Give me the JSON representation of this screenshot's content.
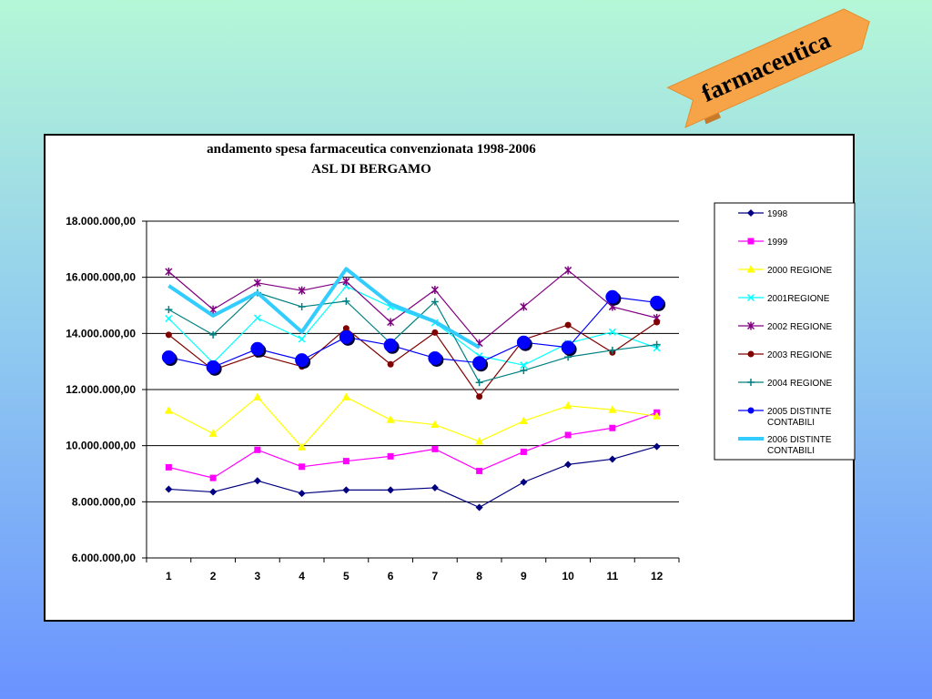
{
  "banner": {
    "text": "farmaceutica",
    "color": "#f7a347"
  },
  "chart_data": {
    "type": "line",
    "title": "andamento spesa farmaceutica convenzionata 1998-2006",
    "subtitle": "ASL DI BERGAMO",
    "categories": [
      "1",
      "2",
      "3",
      "4",
      "5",
      "6",
      "7",
      "8",
      "9",
      "10",
      "11",
      "12"
    ],
    "ylim": [
      6000000,
      18000000
    ],
    "yticks": [
      "6.000.000,00",
      "8.000.000,00",
      "10.000.000,00",
      "12.000.000,00",
      "14.000.000,00",
      "16.000.000,00",
      "18.000.000,00"
    ],
    "grid": true,
    "legend_position": "right",
    "series": [
      {
        "name": "1998",
        "color": "#000080",
        "marker": "diamond",
        "values": [
          8450000,
          8350000,
          8750000,
          8300000,
          8420000,
          8420000,
          8500000,
          7800000,
          8700000,
          9330000,
          9520000,
          9970000
        ]
      },
      {
        "name": "1999",
        "color": "#ff00ff",
        "marker": "square",
        "values": [
          9230000,
          8850000,
          9850000,
          9250000,
          9450000,
          9620000,
          9880000,
          9100000,
          9780000,
          10380000,
          10630000,
          11180000
        ]
      },
      {
        "name": "2000 REGIONE",
        "color": "#ffff00",
        "marker": "triangle",
        "values": [
          11250000,
          10430000,
          11730000,
          9950000,
          11730000,
          10920000,
          10750000,
          10150000,
          10880000,
          11420000,
          11280000,
          11050000
        ]
      },
      {
        "name": "2001REGIONE",
        "color": "#00ffff",
        "marker": "x",
        "values": [
          14530000,
          12950000,
          14550000,
          13800000,
          15680000,
          14950000,
          14380000,
          13200000,
          12870000,
          13650000,
          14050000,
          13480000
        ]
      },
      {
        "name": "2002 REGIONE",
        "color": "#800080",
        "marker": "star",
        "values": [
          16200000,
          14850000,
          15800000,
          15530000,
          15850000,
          14400000,
          15550000,
          13650000,
          14950000,
          16250000,
          14950000,
          14550000
        ]
      },
      {
        "name": "2003 REGIONE",
        "color": "#800000",
        "marker": "circle",
        "values": [
          13950000,
          12700000,
          13250000,
          12820000,
          14180000,
          12900000,
          14030000,
          11750000,
          13780000,
          14300000,
          13320000,
          14400000
        ]
      },
      {
        "name": "2004 REGIONE",
        "color": "#008080",
        "marker": "plus",
        "values": [
          14850000,
          13950000,
          15450000,
          14950000,
          15150000,
          13650000,
          15130000,
          12250000,
          12680000,
          13160000,
          13400000,
          13600000
        ]
      },
      {
        "name": "2005 DISTINTE CONTABILI",
        "color": "#0000ff",
        "marker": "bigcircle",
        "values": [
          13150000,
          12800000,
          13450000,
          13050000,
          13870000,
          13580000,
          13120000,
          12950000,
          13680000,
          13500000,
          15300000,
          15100000
        ]
      },
      {
        "name": "2006 DISTINTE CONTABILI",
        "color": "#33ccff",
        "marker": "none",
        "thick": true,
        "values": [
          15700000,
          14630000,
          15450000,
          14050000,
          16300000,
          15050000,
          14420000,
          13500000,
          null,
          null,
          null,
          null
        ]
      }
    ]
  }
}
